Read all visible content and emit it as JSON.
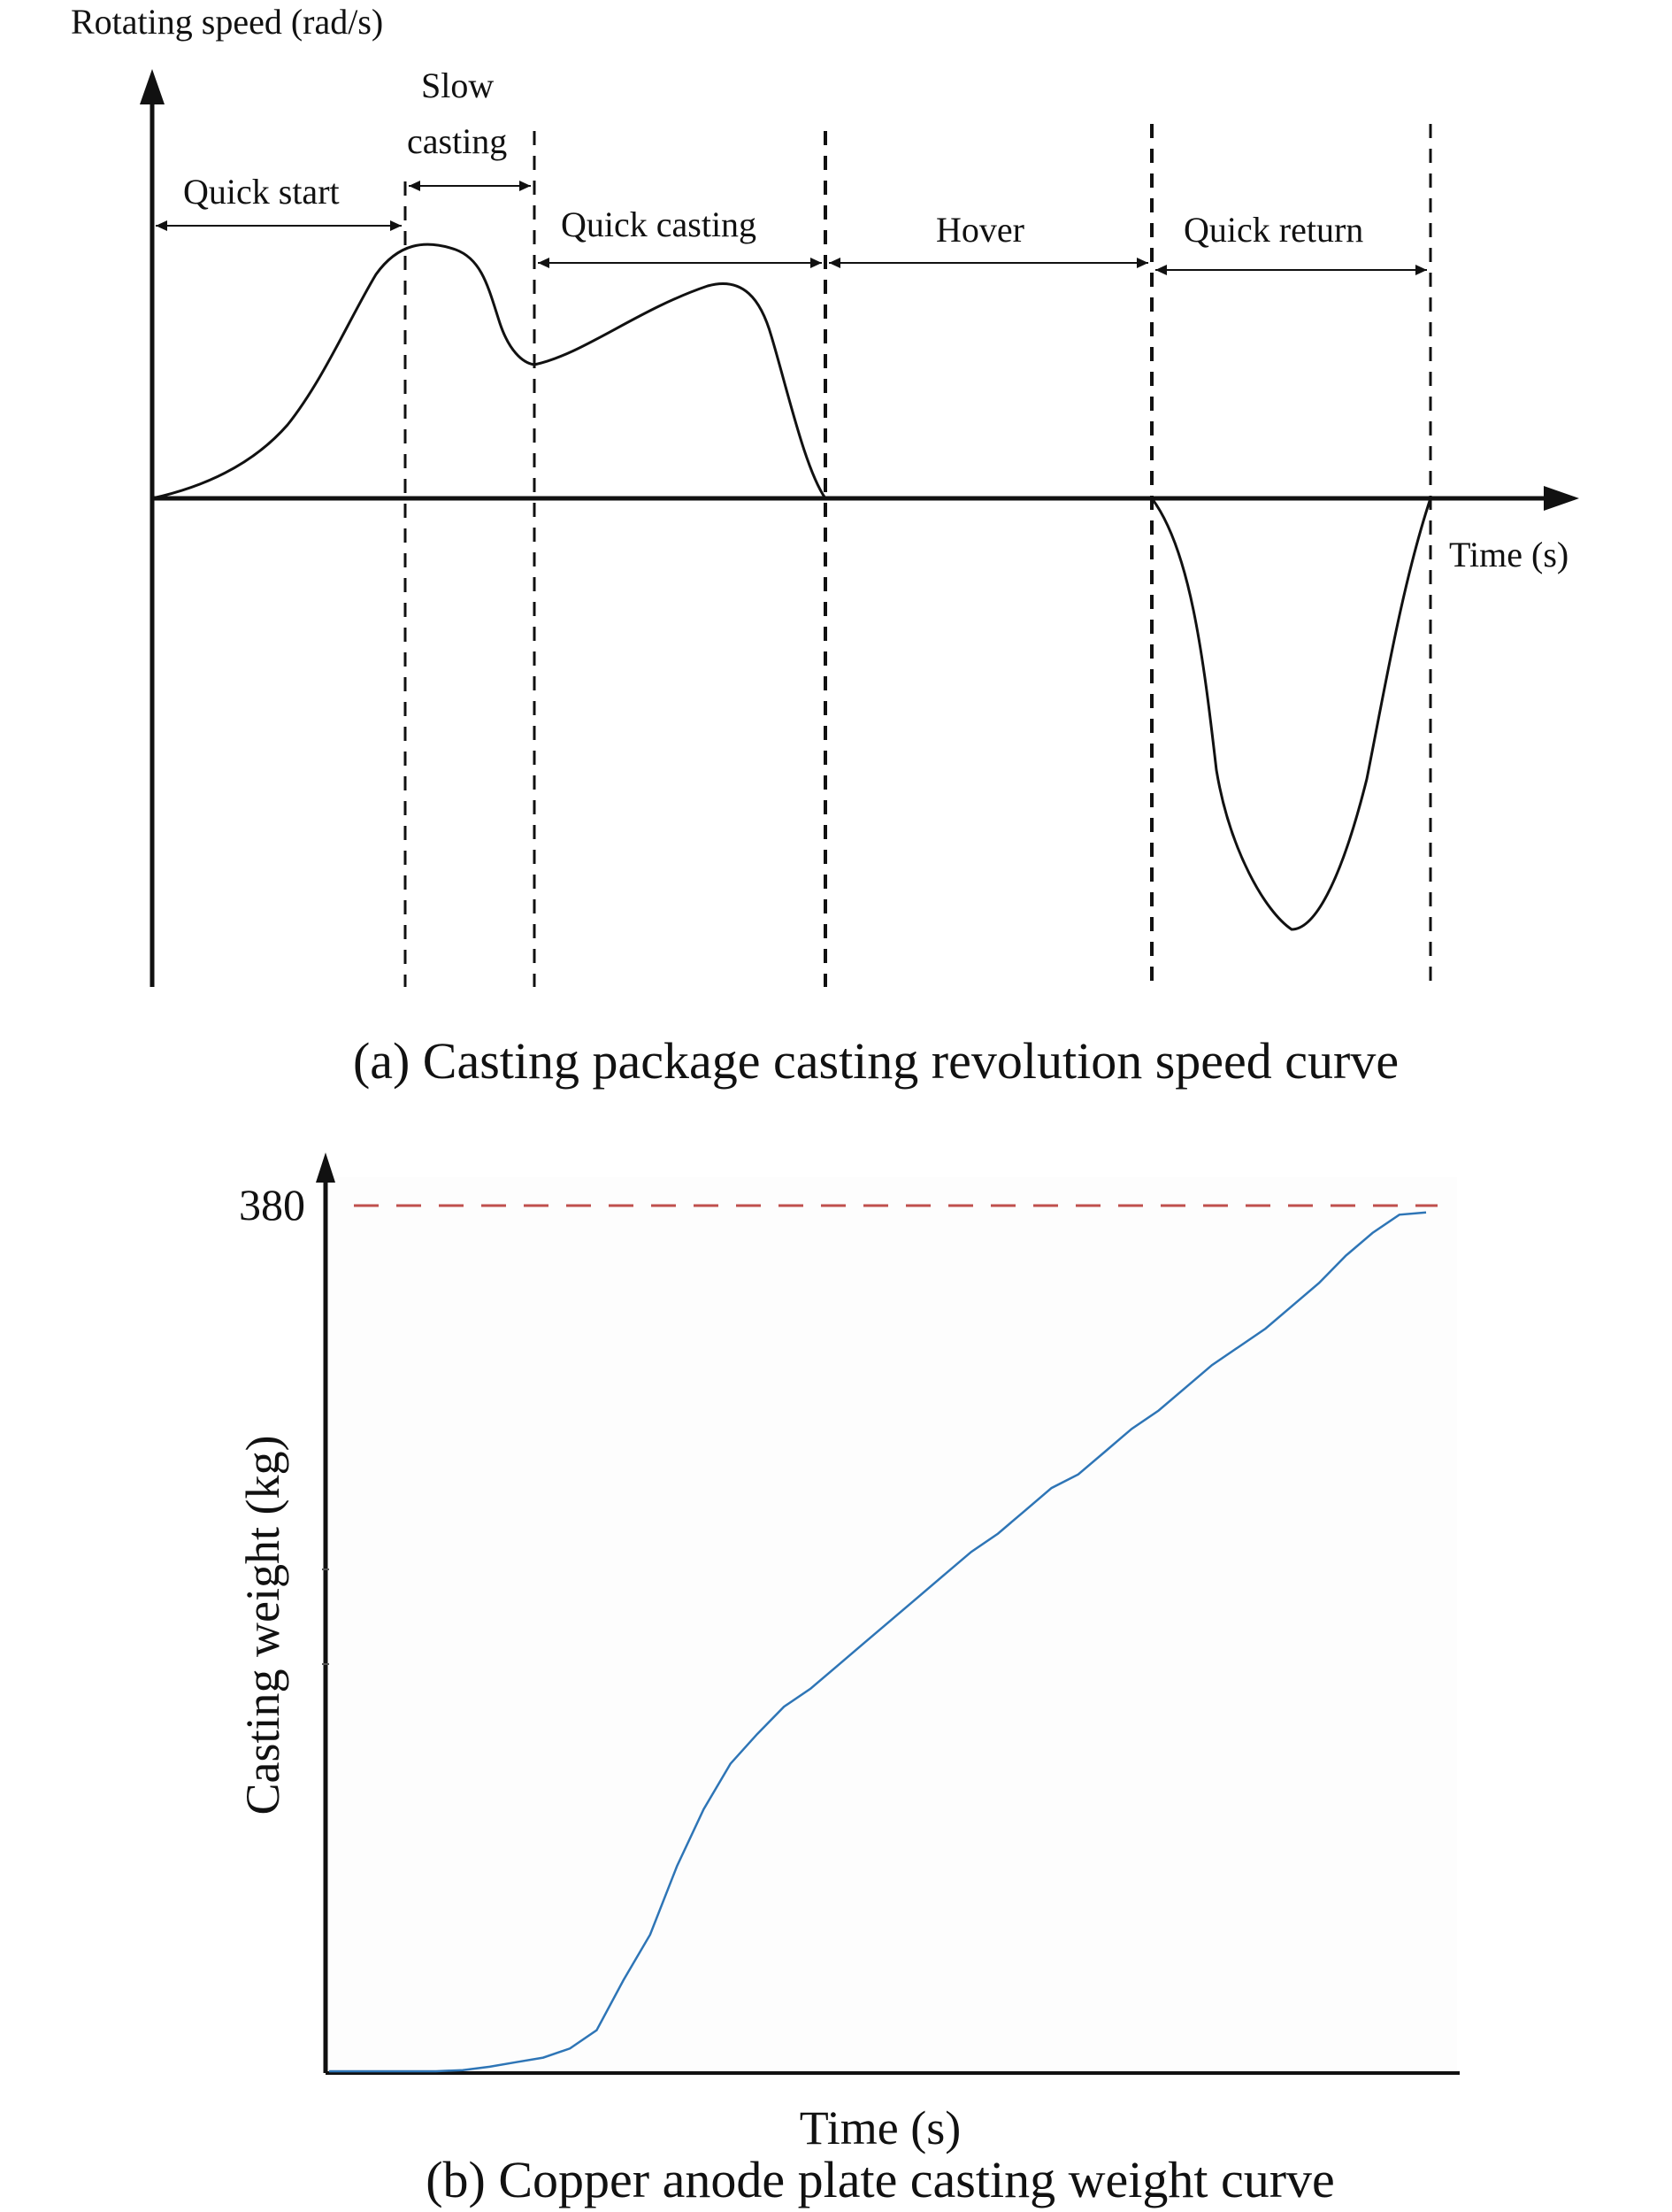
{
  "chart_data": [
    {
      "type": "line",
      "title": "",
      "caption": "(a) Casting package casting revolution speed curve",
      "ylabel": "Rotating speed (rad/s)",
      "xlabel": "Time (s)",
      "grid": false,
      "y_ticks_shown": false,
      "phases": [
        {
          "name": "quick-start",
          "label": "Quick start"
        },
        {
          "name": "slow-casting",
          "label_line1": "Slow",
          "label_line2": "casting"
        },
        {
          "name": "quick-casting",
          "label": "Quick casting"
        },
        {
          "name": "hover",
          "label": "Hover"
        },
        {
          "name": "quick-return",
          "label": "Quick return"
        }
      ],
      "colors": {
        "curve": "#111111",
        "axes": "#111111"
      }
    },
    {
      "type": "line",
      "title": "",
      "caption": "(b) Copper anode plate casting weight curve",
      "ylabel": "Casting weight (kg)",
      "xlabel": "Time (s)",
      "grid": false,
      "y_tick_labels": [
        "380"
      ],
      "target_line": {
        "value": 380,
        "style": "dashed",
        "color": "#c0504d"
      },
      "series": [
        {
          "values": [
            0,
            0,
            0,
            0,
            0,
            0.5,
            2,
            4,
            6,
            10,
            18,
            40,
            60,
            90,
            115,
            135,
            148,
            160,
            168,
            178,
            188,
            198,
            208,
            218,
            228,
            236,
            246,
            256,
            262,
            272,
            282,
            290,
            300,
            310,
            318,
            326,
            336,
            346,
            358,
            368,
            376,
            377
          ]
        }
      ],
      "colors": {
        "curve": "#2e75b6",
        "target": "#c0504d",
        "axes": "#111111"
      }
    }
  ]
}
